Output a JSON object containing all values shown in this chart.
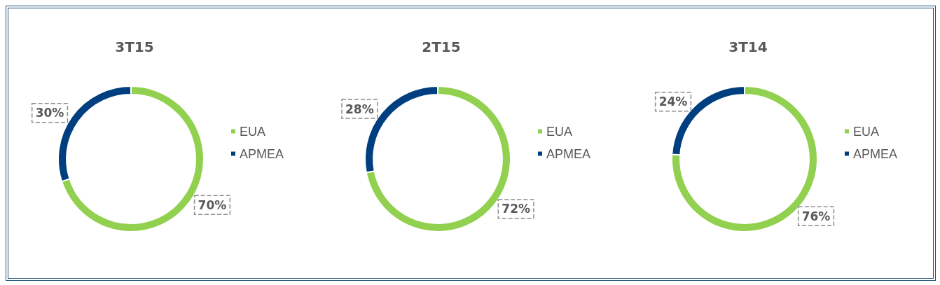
{
  "chart_data": [
    {
      "type": "donut",
      "title": "3T15",
      "categories": [
        "EUA",
        "APMEA"
      ],
      "values": [
        70,
        30
      ],
      "colors": [
        "#92d050",
        "#003f7f"
      ],
      "value_labels": [
        "70%",
        "30%"
      ],
      "legend": "right"
    },
    {
      "type": "donut",
      "title": "2T15",
      "categories": [
        "EUA",
        "APMEA"
      ],
      "values": [
        72,
        28
      ],
      "colors": [
        "#92d050",
        "#003f7f"
      ],
      "value_labels": [
        "72%",
        "28%"
      ],
      "legend": "right"
    },
    {
      "type": "donut",
      "title": "3T14",
      "categories": [
        "EUA",
        "APMEA"
      ],
      "values": [
        76,
        24
      ],
      "colors": [
        "#92d050",
        "#003f7f"
      ],
      "value_labels": [
        "76%",
        "24%"
      ],
      "legend": "right"
    }
  ]
}
